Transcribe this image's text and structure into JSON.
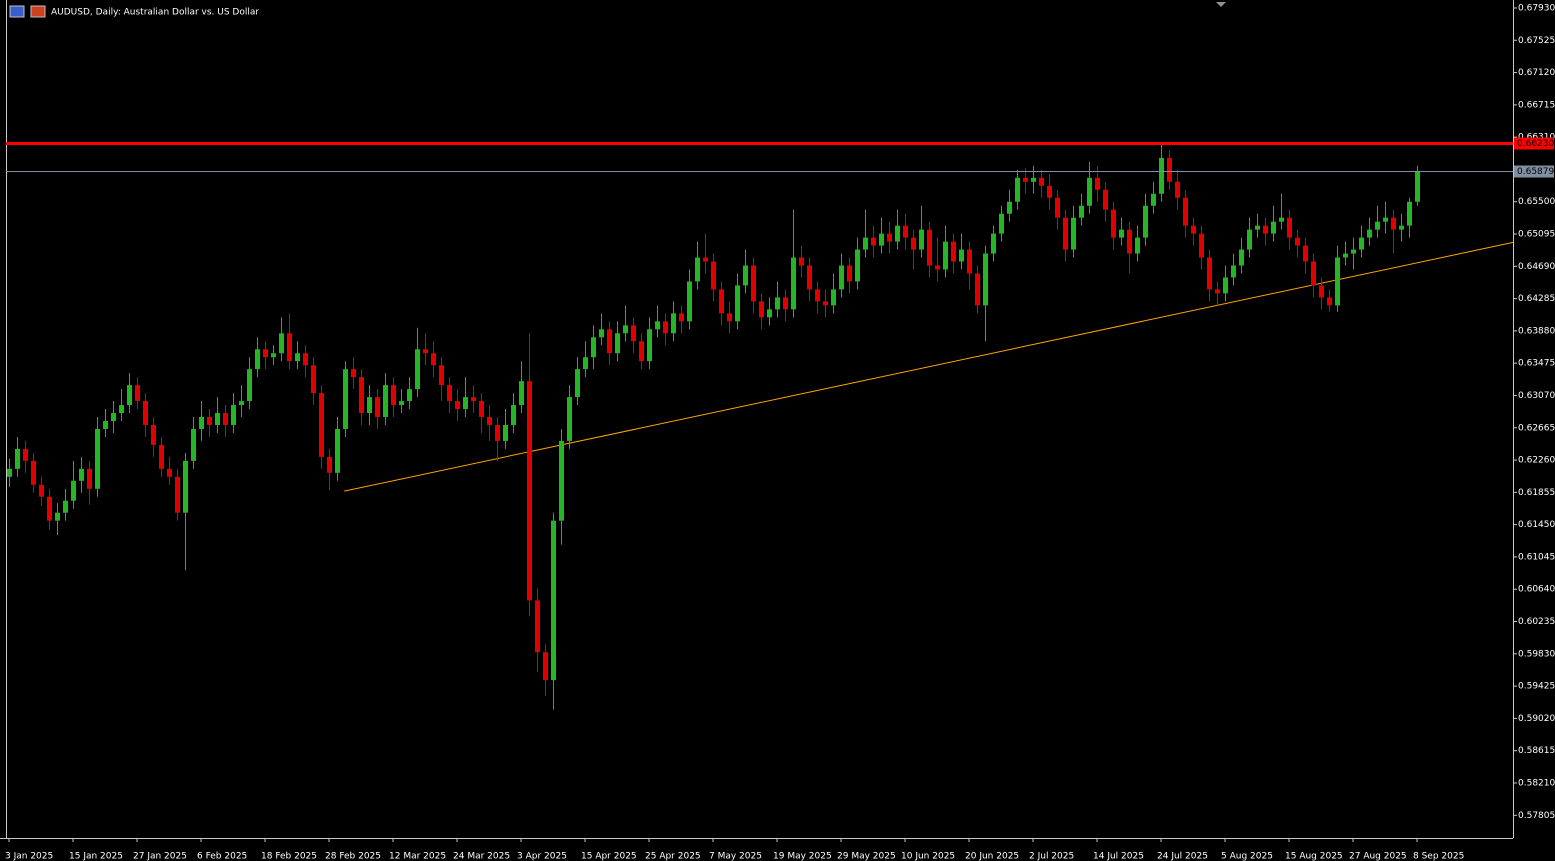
{
  "chart_data": {
    "type": "candlestick",
    "title": "AUDUSD, Daily:  Australian Dollar vs. US Dollar",
    "up_color": "#26b526",
    "down_color": "#e00000",
    "ylim": [
      0.5752,
      0.6803
    ],
    "yticks": [
      {
        "value": 0.6793,
        "label": "0.67930"
      },
      0.67525,
      {
        "value": 0.6712,
        "label": "0.67120"
      },
      0.66715,
      {
        "value": 0.6631,
        "label": "0.66310"
      },
      {
        "value": 0.655,
        "label": "0.65500"
      },
      0.65095,
      {
        "value": 0.6469,
        "label": "0.64690"
      },
      0.64285,
      {
        "value": 0.6388,
        "label": "0.63880"
      },
      0.63475,
      {
        "value": 0.6307,
        "label": "0.63070"
      },
      0.62665,
      {
        "value": 0.6226,
        "label": "0.62260"
      },
      0.61855,
      {
        "value": 0.6145,
        "label": "0.61450"
      },
      0.61045,
      {
        "value": 0.6064,
        "label": "0.60640"
      },
      0.60235,
      {
        "value": 0.5983,
        "label": "0.59830"
      },
      0.59425,
      {
        "value": 0.5902,
        "label": "0.59020"
      },
      0.58615,
      {
        "value": 0.5821,
        "label": "0.58210"
      },
      0.57805
    ],
    "hlines": [
      {
        "value": 0.6623,
        "label": "0.66230",
        "color": "#ff0000"
      },
      {
        "value": 0.65879,
        "label": "0.65879",
        "color": "#8090a0"
      }
    ],
    "trendline": {
      "x": [
        41.9,
        188.4
      ],
      "y": [
        0.6187,
        0.6499
      ],
      "color": "#ffa500"
    },
    "categories": [
      "3 Jan 2025",
      null,
      null,
      null,
      null,
      null,
      null,
      null,
      "15 Jan 2025",
      null,
      null,
      null,
      null,
      null,
      null,
      null,
      "27 Jan 2025",
      null,
      null,
      null,
      null,
      null,
      null,
      null,
      "6 Feb 2025",
      null,
      null,
      null,
      null,
      null,
      null,
      null,
      "18 Feb 2025",
      null,
      null,
      null,
      null,
      null,
      null,
      null,
      "28 Feb 2025",
      null,
      null,
      null,
      null,
      null,
      null,
      null,
      "12 Mar 2025",
      null,
      null,
      null,
      null,
      null,
      null,
      null,
      "24 Mar 2025",
      null,
      null,
      null,
      null,
      null,
      null,
      null,
      "3 Apr 2025",
      null,
      null,
      null,
      null,
      null,
      null,
      null,
      "15 Apr 2025",
      null,
      null,
      null,
      null,
      null,
      null,
      null,
      "25 Apr 2025",
      null,
      null,
      null,
      null,
      null,
      null,
      null,
      "7 May 2025",
      null,
      null,
      null,
      null,
      null,
      null,
      null,
      "19 May 2025",
      null,
      null,
      null,
      null,
      null,
      null,
      null,
      "29 May 2025",
      null,
      null,
      null,
      null,
      null,
      null,
      null,
      "10 Jun 2025",
      null,
      null,
      null,
      null,
      null,
      null,
      null,
      "20 Jun 2025",
      null,
      null,
      null,
      null,
      null,
      null,
      null,
      "2 Jul 2025",
      null,
      null,
      null,
      null,
      null,
      null,
      null,
      "14 Jul 2025",
      null,
      null,
      null,
      null,
      null,
      null,
      null,
      "24 Jul 2025",
      null,
      null,
      null,
      null,
      null,
      null,
      null,
      "5 Aug 2025",
      null,
      null,
      null,
      null,
      null,
      null,
      null,
      "15 Aug 2025",
      null,
      null,
      null,
      null,
      null,
      null,
      null,
      "27 Aug 2025",
      null,
      null,
      null,
      null,
      null,
      null,
      null,
      "8 Sep 2025"
    ],
    "ohlc": [
      [
        0.6205,
        0.6228,
        0.6192,
        0.6215
      ],
      [
        0.6215,
        0.6255,
        0.6205,
        0.624
      ],
      [
        0.624,
        0.625,
        0.621,
        0.6225
      ],
      [
        0.6225,
        0.6235,
        0.6185,
        0.6195
      ],
      [
        0.6195,
        0.6205,
        0.6168,
        0.618
      ],
      [
        0.618,
        0.619,
        0.6138,
        0.615
      ],
      [
        0.615,
        0.6172,
        0.6132,
        0.616
      ],
      [
        0.616,
        0.619,
        0.615,
        0.6175
      ],
      [
        0.6175,
        0.6225,
        0.6165,
        0.62
      ],
      [
        0.62,
        0.623,
        0.6185,
        0.6215
      ],
      [
        0.6215,
        0.6225,
        0.617,
        0.619
      ],
      [
        0.619,
        0.628,
        0.618,
        0.6265
      ],
      [
        0.6265,
        0.629,
        0.6255,
        0.6275
      ],
      [
        0.6275,
        0.63,
        0.626,
        0.6285
      ],
      [
        0.6285,
        0.6315,
        0.6275,
        0.6295
      ],
      [
        0.6295,
        0.6335,
        0.6285,
        0.632
      ],
      [
        0.632,
        0.633,
        0.629,
        0.63
      ],
      [
        0.63,
        0.631,
        0.6255,
        0.627
      ],
      [
        0.627,
        0.628,
        0.623,
        0.6245
      ],
      [
        0.6245,
        0.6255,
        0.6205,
        0.6215
      ],
      [
        0.6215,
        0.623,
        0.6195,
        0.6205
      ],
      [
        0.6205,
        0.6215,
        0.615,
        0.616
      ],
      [
        0.616,
        0.6235,
        0.6088,
        0.6225
      ],
      [
        0.6225,
        0.628,
        0.6215,
        0.6265
      ],
      [
        0.6265,
        0.63,
        0.625,
        0.628
      ],
      [
        0.628,
        0.629,
        0.6255,
        0.627
      ],
      [
        0.627,
        0.6305,
        0.626,
        0.6285
      ],
      [
        0.6285,
        0.6295,
        0.6255,
        0.627
      ],
      [
        0.627,
        0.631,
        0.626,
        0.6295
      ],
      [
        0.6295,
        0.632,
        0.628,
        0.63
      ],
      [
        0.63,
        0.6355,
        0.629,
        0.634
      ],
      [
        0.634,
        0.638,
        0.633,
        0.6365
      ],
      [
        0.6365,
        0.6375,
        0.634,
        0.6355
      ],
      [
        0.6355,
        0.637,
        0.6345,
        0.636
      ],
      [
        0.636,
        0.6405,
        0.635,
        0.6385
      ],
      [
        0.6385,
        0.641,
        0.634,
        0.635
      ],
      [
        0.635,
        0.6375,
        0.634,
        0.636
      ],
      [
        0.636,
        0.637,
        0.633,
        0.6345
      ],
      [
        0.6345,
        0.6355,
        0.6295,
        0.631
      ],
      [
        0.631,
        0.632,
        0.6215,
        0.623
      ],
      [
        0.623,
        0.624,
        0.6188,
        0.621
      ],
      [
        0.621,
        0.628,
        0.62,
        0.6265
      ],
      [
        0.6265,
        0.635,
        0.6255,
        0.634
      ],
      [
        0.634,
        0.6355,
        0.6315,
        0.633
      ],
      [
        0.633,
        0.634,
        0.627,
        0.6285
      ],
      [
        0.6285,
        0.632,
        0.627,
        0.6305
      ],
      [
        0.6305,
        0.6315,
        0.6265,
        0.628
      ],
      [
        0.628,
        0.6335,
        0.627,
        0.632
      ],
      [
        0.632,
        0.633,
        0.628,
        0.6295
      ],
      [
        0.6295,
        0.6315,
        0.6285,
        0.63
      ],
      [
        0.63,
        0.633,
        0.629,
        0.6315
      ],
      [
        0.6315,
        0.6392,
        0.6305,
        0.6365
      ],
      [
        0.6365,
        0.6385,
        0.6345,
        0.636
      ],
      [
        0.636,
        0.6375,
        0.633,
        0.6345
      ],
      [
        0.6345,
        0.6355,
        0.63,
        0.632
      ],
      [
        0.632,
        0.633,
        0.6285,
        0.63
      ],
      [
        0.63,
        0.6315,
        0.6275,
        0.629
      ],
      [
        0.629,
        0.633,
        0.628,
        0.6305
      ],
      [
        0.6305,
        0.632,
        0.6285,
        0.63
      ],
      [
        0.63,
        0.631,
        0.626,
        0.628
      ],
      [
        0.628,
        0.6295,
        0.625,
        0.627
      ],
      [
        0.627,
        0.628,
        0.6225,
        0.625
      ],
      [
        0.625,
        0.629,
        0.624,
        0.627
      ],
      [
        0.627,
        0.631,
        0.626,
        0.6295
      ],
      [
        0.6295,
        0.635,
        0.6285,
        0.6325
      ],
      [
        0.6325,
        0.6385,
        0.603,
        0.605
      ],
      [
        0.605,
        0.6065,
        0.596,
        0.5985
      ],
      [
        0.5985,
        0.5995,
        0.593,
        0.595
      ],
      [
        0.595,
        0.616,
        0.5913,
        0.615
      ],
      [
        0.615,
        0.6265,
        0.612,
        0.625
      ],
      [
        0.625,
        0.632,
        0.624,
        0.6305
      ],
      [
        0.6305,
        0.6355,
        0.6295,
        0.634
      ],
      [
        0.634,
        0.6375,
        0.633,
        0.6355
      ],
      [
        0.6355,
        0.6395,
        0.634,
        0.638
      ],
      [
        0.638,
        0.641,
        0.637,
        0.639
      ],
      [
        0.639,
        0.64,
        0.6345,
        0.636
      ],
      [
        0.636,
        0.64,
        0.635,
        0.6385
      ],
      [
        0.6385,
        0.642,
        0.6375,
        0.6395
      ],
      [
        0.6395,
        0.6405,
        0.636,
        0.6375
      ],
      [
        0.6375,
        0.6385,
        0.634,
        0.635
      ],
      [
        0.635,
        0.6405,
        0.634,
        0.639
      ],
      [
        0.639,
        0.642,
        0.638,
        0.64
      ],
      [
        0.64,
        0.641,
        0.637,
        0.6385
      ],
      [
        0.6385,
        0.6425,
        0.6375,
        0.641
      ],
      [
        0.641,
        0.642,
        0.6385,
        0.64
      ],
      [
        0.64,
        0.6465,
        0.639,
        0.645
      ],
      [
        0.645,
        0.65,
        0.644,
        0.648
      ],
      [
        0.648,
        0.651,
        0.646,
        0.6475
      ],
      [
        0.6475,
        0.6485,
        0.6425,
        0.644
      ],
      [
        0.644,
        0.645,
        0.6395,
        0.641
      ],
      [
        0.641,
        0.6425,
        0.6385,
        0.64
      ],
      [
        0.64,
        0.646,
        0.639,
        0.6445
      ],
      [
        0.6445,
        0.649,
        0.6435,
        0.647
      ],
      [
        0.647,
        0.648,
        0.641,
        0.6425
      ],
      [
        0.6425,
        0.6435,
        0.639,
        0.6405
      ],
      [
        0.6405,
        0.643,
        0.6395,
        0.6415
      ],
      [
        0.6415,
        0.645,
        0.6405,
        0.643
      ],
      [
        0.643,
        0.644,
        0.64,
        0.6415
      ],
      [
        0.6415,
        0.654,
        0.6405,
        0.648
      ],
      [
        0.648,
        0.6495,
        0.6455,
        0.647
      ],
      [
        0.647,
        0.648,
        0.6425,
        0.644
      ],
      [
        0.644,
        0.645,
        0.641,
        0.6425
      ],
      [
        0.6425,
        0.644,
        0.6405,
        0.642
      ],
      [
        0.642,
        0.646,
        0.641,
        0.644
      ],
      [
        0.644,
        0.6485,
        0.643,
        0.647
      ],
      [
        0.647,
        0.648,
        0.6435,
        0.645
      ],
      [
        0.645,
        0.6505,
        0.644,
        0.649
      ],
      [
        0.649,
        0.654,
        0.648,
        0.6505
      ],
      [
        0.6505,
        0.652,
        0.648,
        0.6495
      ],
      [
        0.6495,
        0.653,
        0.6485,
        0.651
      ],
      [
        0.651,
        0.6525,
        0.6485,
        0.65
      ],
      [
        0.65,
        0.654,
        0.649,
        0.652
      ],
      [
        0.652,
        0.6535,
        0.649,
        0.6505
      ],
      [
        0.6505,
        0.6515,
        0.6465,
        0.649
      ],
      [
        0.649,
        0.6545,
        0.648,
        0.6515
      ],
      [
        0.6515,
        0.6525,
        0.6455,
        0.647
      ],
      [
        0.647,
        0.6505,
        0.645,
        0.6465
      ],
      [
        0.6465,
        0.652,
        0.6455,
        0.65
      ],
      [
        0.65,
        0.651,
        0.646,
        0.6475
      ],
      [
        0.6475,
        0.651,
        0.6465,
        0.649
      ],
      [
        0.649,
        0.65,
        0.644,
        0.646
      ],
      [
        0.646,
        0.647,
        0.641,
        0.642
      ],
      [
        0.642,
        0.6495,
        0.6375,
        0.6485
      ],
      [
        0.6485,
        0.652,
        0.6475,
        0.651
      ],
      [
        0.651,
        0.6545,
        0.65,
        0.6535
      ],
      [
        0.6535,
        0.6565,
        0.6525,
        0.655
      ],
      [
        0.655,
        0.659,
        0.654,
        0.658
      ],
      [
        0.658,
        0.6592,
        0.656,
        0.6575
      ],
      [
        0.6575,
        0.6595,
        0.656,
        0.658
      ],
      [
        0.658,
        0.659,
        0.6555,
        0.657
      ],
      [
        0.657,
        0.6585,
        0.654,
        0.6555
      ],
      [
        0.6555,
        0.6565,
        0.6515,
        0.653
      ],
      [
        0.653,
        0.654,
        0.6475,
        0.649
      ],
      [
        0.649,
        0.6545,
        0.648,
        0.653
      ],
      [
        0.653,
        0.656,
        0.652,
        0.6545
      ],
      [
        0.6545,
        0.66,
        0.6535,
        0.658
      ],
      [
        0.658,
        0.6595,
        0.655,
        0.6565
      ],
      [
        0.6565,
        0.6575,
        0.6525,
        0.654
      ],
      [
        0.654,
        0.655,
        0.649,
        0.6505
      ],
      [
        0.6505,
        0.653,
        0.6495,
        0.6515
      ],
      [
        0.6515,
        0.6525,
        0.646,
        0.6485
      ],
      [
        0.6485,
        0.652,
        0.6475,
        0.6505
      ],
      [
        0.6505,
        0.656,
        0.6495,
        0.6545
      ],
      [
        0.6545,
        0.6575,
        0.6535,
        0.656
      ],
      [
        0.656,
        0.6625,
        0.655,
        0.6605
      ],
      [
        0.6605,
        0.6615,
        0.6565,
        0.6575
      ],
      [
        0.6575,
        0.659,
        0.654,
        0.6555
      ],
      [
        0.6555,
        0.6565,
        0.6505,
        0.652
      ],
      [
        0.652,
        0.653,
        0.6495,
        0.651
      ],
      [
        0.651,
        0.652,
        0.6465,
        0.648
      ],
      [
        0.648,
        0.649,
        0.6425,
        0.644
      ],
      [
        0.644,
        0.645,
        0.642,
        0.6435
      ],
      [
        0.6435,
        0.647,
        0.6425,
        0.6455
      ],
      [
        0.6455,
        0.6485,
        0.6445,
        0.647
      ],
      [
        0.647,
        0.6505,
        0.646,
        0.649
      ],
      [
        0.649,
        0.653,
        0.648,
        0.6515
      ],
      [
        0.6515,
        0.6535,
        0.6505,
        0.652
      ],
      [
        0.652,
        0.653,
        0.6495,
        0.651
      ],
      [
        0.651,
        0.6545,
        0.65,
        0.6525
      ],
      [
        0.6525,
        0.656,
        0.6515,
        0.653
      ],
      [
        0.653,
        0.654,
        0.649,
        0.6505
      ],
      [
        0.6505,
        0.6515,
        0.648,
        0.6495
      ],
      [
        0.6495,
        0.6505,
        0.646,
        0.6475
      ],
      [
        0.6475,
        0.6485,
        0.643,
        0.6445
      ],
      [
        0.6445,
        0.6455,
        0.6415,
        0.643
      ],
      [
        0.643,
        0.644,
        0.6412,
        0.642
      ],
      [
        0.642,
        0.6495,
        0.6412,
        0.648
      ],
      [
        0.648,
        0.65,
        0.647,
        0.6485
      ],
      [
        0.6485,
        0.6505,
        0.6465,
        0.649
      ],
      [
        0.649,
        0.652,
        0.648,
        0.6505
      ],
      [
        0.6505,
        0.653,
        0.6495,
        0.6515
      ],
      [
        0.6515,
        0.6545,
        0.6505,
        0.6525
      ],
      [
        0.6525,
        0.655,
        0.651,
        0.653
      ],
      [
        0.653,
        0.654,
        0.6485,
        0.6515
      ],
      [
        0.6515,
        0.6535,
        0.65,
        0.652
      ],
      [
        0.652,
        0.6555,
        0.6505,
        0.655
      ],
      [
        0.655,
        0.6595,
        0.6545,
        0.6588
      ]
    ]
  }
}
